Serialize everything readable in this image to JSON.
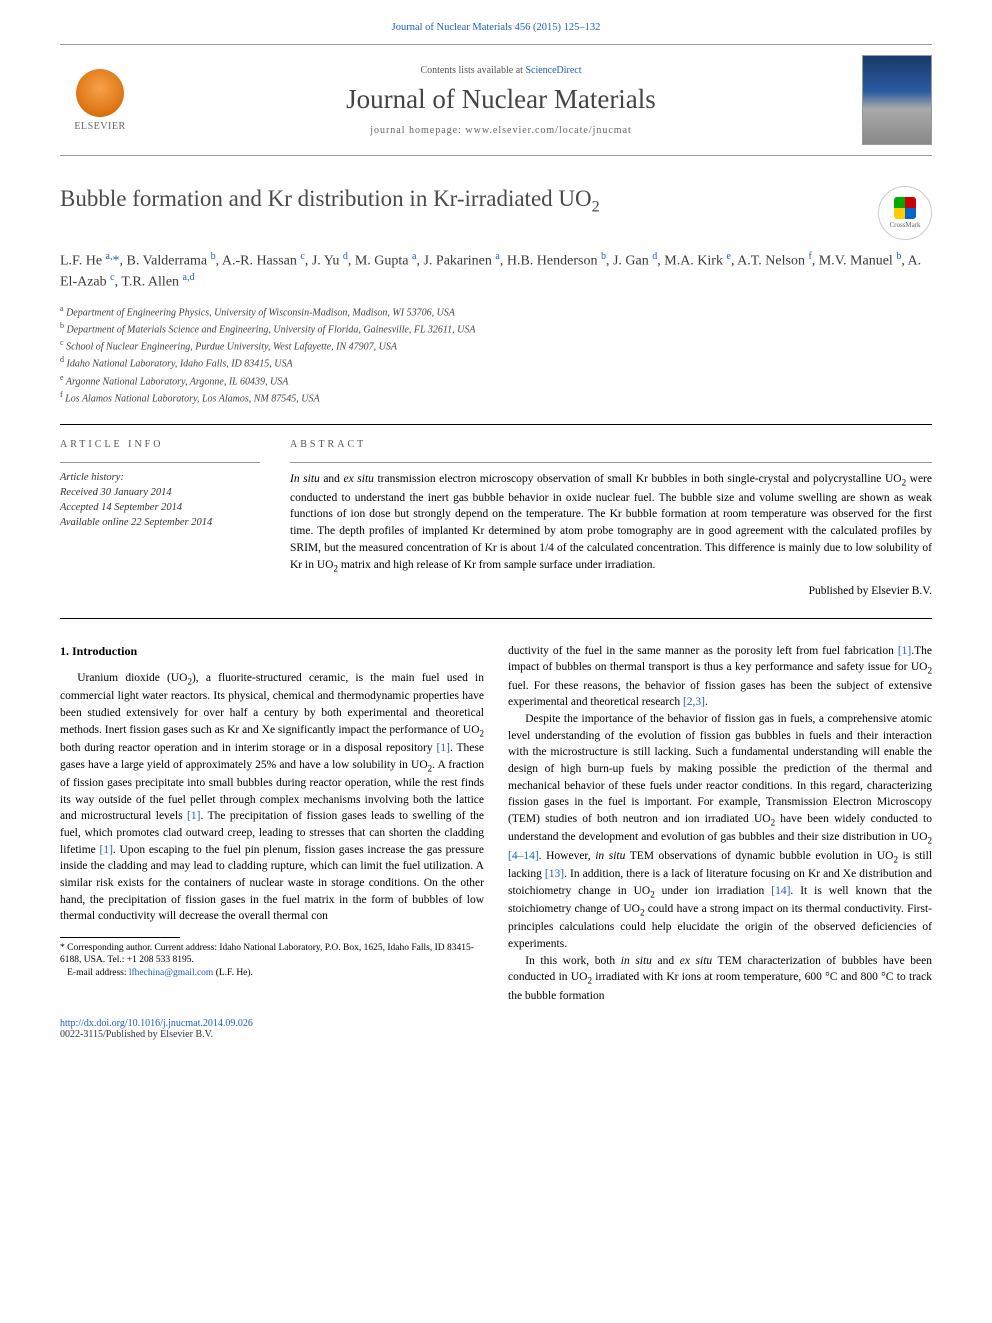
{
  "header": {
    "citation": "Journal of Nuclear Materials 456 (2015) 125–132",
    "contents_prefix": "Contents lists available at ",
    "contents_link": "ScienceDirect",
    "journal_name": "Journal of Nuclear Materials",
    "homepage_label": "journal homepage: ",
    "homepage_url": "www.elsevier.com/locate/jnucmat",
    "publisher": "ELSEVIER"
  },
  "article": {
    "title_pre": "Bubble formation and Kr distribution in Kr-irradiated UO",
    "title_sub": "2",
    "crossmark": "CrossMark",
    "authors_html": "L.F. He <sup>a,</sup><span class='corr'>*</span>, B. Valderrama <sup>b</sup>, A.-R. Hassan <sup>c</sup>, J. Yu <sup>d</sup>, M. Gupta <sup>a</sup>, J. Pakarinen <sup>a</sup>, H.B. Henderson <sup>b</sup>, J. Gan <sup>d</sup>, M.A. Kirk <sup>e</sup>, A.T. Nelson <sup>f</sup>, M.V. Manuel <sup>b</sup>, A. El-Azab <sup>c</sup>, T.R. Allen <sup>a,d</sup>",
    "affiliations": [
      {
        "s": "a",
        "t": "Department of Engineering Physics, University of Wisconsin-Madison, Madison, WI 53706, USA"
      },
      {
        "s": "b",
        "t": "Department of Materials Science and Engineering, University of Florida, Gainesville, FL 32611, USA"
      },
      {
        "s": "c",
        "t": "School of Nuclear Engineering, Purdue University, West Lafayette, IN 47907, USA"
      },
      {
        "s": "d",
        "t": "Idaho National Laboratory, Idaho Falls, ID 83415, USA"
      },
      {
        "s": "e",
        "t": "Argonne National Laboratory, Argonne, IL 60439, USA"
      },
      {
        "s": "f",
        "t": "Los Alamos National Laboratory, Los Alamos, NM 87545, USA"
      }
    ]
  },
  "info": {
    "left_hdr": "ARTICLE INFO",
    "right_hdr": "ABSTRACT",
    "history_label": "Article history:",
    "received": "Received 30 January 2014",
    "accepted": "Accepted 14 September 2014",
    "online": "Available online 22 September 2014"
  },
  "abstract": {
    "text": "In situ and ex situ transmission electron microscopy observation of small Kr bubbles in both single-crystal and polycrystalline UO₂ were conducted to understand the inert gas bubble behavior in oxide nuclear fuel. The bubble size and volume swelling are shown as weak functions of ion dose but strongly depend on the temperature. The Kr bubble formation at room temperature was observed for the first time. The depth profiles of implanted Kr determined by atom probe tomography are in good agreement with the calculated profiles by SRIM, but the measured concentration of Kr is about 1/4 of the calculated concentration. This difference is mainly due to low solubility of Kr in UO₂ matrix and high release of Kr from sample surface under irradiation.",
    "publisher": "Published by Elsevier B.V."
  },
  "body": {
    "section_title": "1. Introduction",
    "p1": "Uranium dioxide (UO₂), a fluorite-structured ceramic, is the main fuel used in commercial light water reactors. Its physical, chemical and thermodynamic properties have been studied extensively for over half a century by both experimental and theoretical methods. Inert fission gases such as Kr and Xe significantly impact the performance of UO₂ both during reactor operation and in interim storage or in a disposal repository [1]. These gases have a large yield of approximately 25% and have a low solubility in UO₂. A fraction of fission gases precipitate into small bubbles during reactor operation, while the rest finds its way outside of the fuel pellet through complex mechanisms involving both the lattice and microstructural levels [1]. The precipitation of fission gases leads to swelling of the fuel, which promotes clad outward creep, leading to stresses that can shorten the cladding lifetime [1]. Upon escaping to the fuel pin plenum, fission gases increase the gas pressure inside the cladding and may lead to cladding rupture, which can limit the fuel utilization. A similar risk exists for the containers of nuclear waste in storage conditions. On the other hand, the precipitation of fission gases in the fuel matrix in the form of bubbles of low thermal conductivity will decrease the overall thermal con",
    "p1b": "ductivity of the fuel in the same manner as the porosity left from fuel fabrication [1].The impact of bubbles on thermal transport is thus a key performance and safety issue for UO₂ fuel. For these reasons, the behavior of fission gases has been the subject of extensive experimental and theoretical research [2,3].",
    "p2": "Despite the importance of the behavior of fission gas in fuels, a comprehensive atomic level understanding of the evolution of fission gas bubbles in fuels and their interaction with the microstructure is still lacking. Such a fundamental understanding will enable the design of high burn-up fuels by making possible the prediction of the thermal and mechanical behavior of these fuels under reactor conditions. In this regard, characterizing fission gases in the fuel is important. For example, Transmission Electron Microscopy (TEM) studies of both neutron and ion irradiated UO₂ have been widely conducted to understand the development and evolution of gas bubbles and their size distribution in UO₂ [4–14]. However, in situ TEM observations of dynamic bubble evolution in UO₂ is still lacking [13]. In addition, there is a lack of literature focusing on Kr and Xe distribution and stoichiometry change in UO₂ under ion irradiation [14]. It is well known that the stoichiometry change of UO₂ could have a strong impact on its thermal conductivity. First-principles calculations could help elucidate the origin of the observed deficiencies of experiments.",
    "p3": "In this work, both in situ and ex situ TEM characterization of bubbles have been conducted in UO₂ irradiated with Kr ions at room temperature, 600 °C and 800 °C to track the bubble formation"
  },
  "footnote": {
    "corr": "* Corresponding author. Current address: Idaho National Laboratory, P.O. Box, 1625, Idaho Falls, ID 83415-6188, USA. Tel.: +1 208 533 8195.",
    "email_label": "E-mail address: ",
    "email": "lfhechina@gmail.com",
    "email_who": " (L.F. He)."
  },
  "doi": {
    "url": "http://dx.doi.org/10.1016/j.jnucmat.2014.09.026",
    "copy": "0022-3115/Published by Elsevier B.V."
  },
  "colors": {
    "link": "#2060c0",
    "text": "#000000",
    "heading_gray": "#4a4a4a",
    "rule": "#000000",
    "light_rule": "#999999"
  },
  "typography": {
    "body_pt": 11.5,
    "title_pt": 23,
    "journal_pt": 27,
    "authors_pt": 14,
    "affil_pt": 10,
    "footnote_pt": 9.5,
    "line_height": 1.45,
    "font_family": "Georgia, 'Times New Roman', serif"
  }
}
